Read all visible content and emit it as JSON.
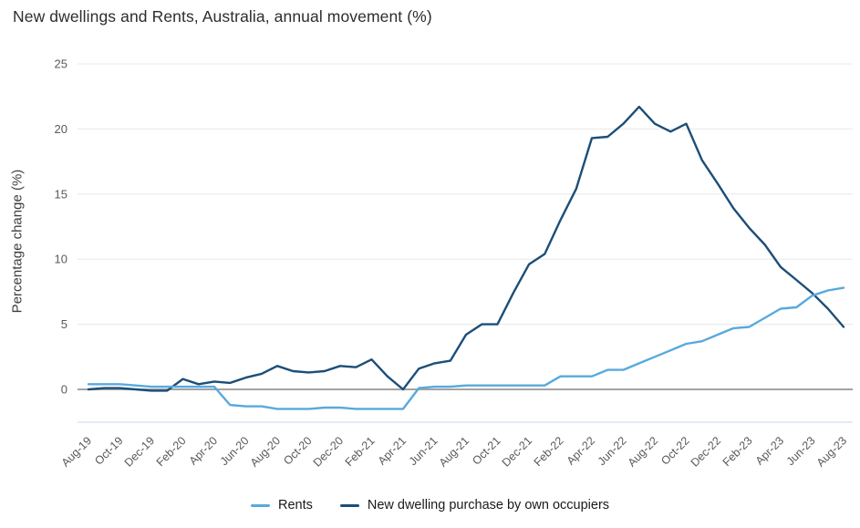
{
  "title": "New dwellings and Rents, Australia, annual movement (%)",
  "y_axis": {
    "title": "Percentage change (%)",
    "ticks": [
      25,
      20,
      15,
      10,
      5,
      0
    ]
  },
  "x_axis": {
    "tick_labels": [
      "Aug-19",
      "Oct-19",
      "Dec-19",
      "Feb-20",
      "Apr-20",
      "Jun-20",
      "Aug-20",
      "Oct-20",
      "Dec-20",
      "Feb-21",
      "Apr-21",
      "Jun-21",
      "Aug-21",
      "Oct-21",
      "Dec-21",
      "Feb-22",
      "Apr-22",
      "Jun-22",
      "Aug-22",
      "Oct-22",
      "Dec-22",
      "Feb-23",
      "Apr-23",
      "Jun-23",
      "Aug-23"
    ]
  },
  "legend": {
    "items": [
      {
        "label": "Rents",
        "color": "#58a9dd"
      },
      {
        "label": "New dwelling purchase by own occupiers",
        "color": "#1c4e78"
      }
    ]
  },
  "colors": {
    "rents_line": "#58a9dd",
    "new_dwellings_line": "#1c4e78",
    "gridline": "#e8e8e8",
    "zero_line": "#a3a3a3",
    "bottom_border": "#dce3f0",
    "tick_text": "#595959"
  },
  "chart_data": {
    "type": "line",
    "title": "New dwellings and Rents, Australia, annual movement (%)",
    "xlabel": "",
    "ylabel": "Percentage change (%)",
    "ylim": [
      -2.6,
      25
    ],
    "grid": "horizontal",
    "legend_position": "bottom",
    "x": [
      "Aug-19",
      "Sep-19",
      "Oct-19",
      "Nov-19",
      "Dec-19",
      "Jan-20",
      "Feb-20",
      "Mar-20",
      "Apr-20",
      "May-20",
      "Jun-20",
      "Jul-20",
      "Aug-20",
      "Sep-20",
      "Oct-20",
      "Nov-20",
      "Dec-20",
      "Jan-21",
      "Feb-21",
      "Mar-21",
      "Apr-21",
      "May-21",
      "Jun-21",
      "Jul-21",
      "Aug-21",
      "Sep-21",
      "Oct-21",
      "Nov-21",
      "Dec-21",
      "Jan-22",
      "Feb-22",
      "Mar-22",
      "Apr-22",
      "May-22",
      "Jun-22",
      "Jul-22",
      "Aug-22",
      "Sep-22",
      "Oct-22",
      "Nov-22",
      "Dec-22",
      "Jan-23",
      "Feb-23",
      "Mar-23",
      "Apr-23",
      "May-23",
      "Jun-23",
      "Jul-23",
      "Aug-23"
    ],
    "series": [
      {
        "name": "Rents",
        "color": "#58a9dd",
        "values": [
          0.4,
          0.4,
          0.4,
          0.3,
          0.2,
          0.2,
          0.2,
          0.2,
          0.2,
          -1.2,
          -1.3,
          -1.3,
          -1.5,
          -1.5,
          -1.5,
          -1.4,
          -1.4,
          -1.5,
          -1.5,
          -1.5,
          -1.5,
          0.1,
          0.2,
          0.2,
          0.3,
          0.3,
          0.3,
          0.3,
          0.3,
          0.3,
          1.0,
          1.0,
          1.0,
          1.5,
          1.5,
          2.0,
          2.5,
          3.0,
          3.5,
          3.7,
          4.2,
          4.7,
          4.8,
          5.5,
          6.2,
          6.3,
          7.2,
          7.6,
          7.8
        ]
      },
      {
        "name": "New dwelling purchase by own occupiers",
        "color": "#1c4e78",
        "values": [
          0.0,
          0.1,
          0.1,
          0.0,
          -0.1,
          -0.1,
          0.8,
          0.4,
          0.6,
          0.5,
          0.9,
          1.2,
          1.8,
          1.4,
          1.3,
          1.4,
          1.8,
          1.7,
          2.3,
          1.0,
          0.0,
          1.6,
          2.0,
          2.2,
          4.2,
          5.0,
          5.0,
          7.4,
          9.6,
          10.4,
          13.0,
          15.4,
          19.3,
          19.4,
          20.4,
          21.7,
          20.4,
          19.8,
          20.4,
          17.6,
          15.8,
          13.9,
          12.4,
          11.1,
          9.4,
          8.4,
          7.4,
          6.2,
          4.8
        ]
      }
    ]
  }
}
